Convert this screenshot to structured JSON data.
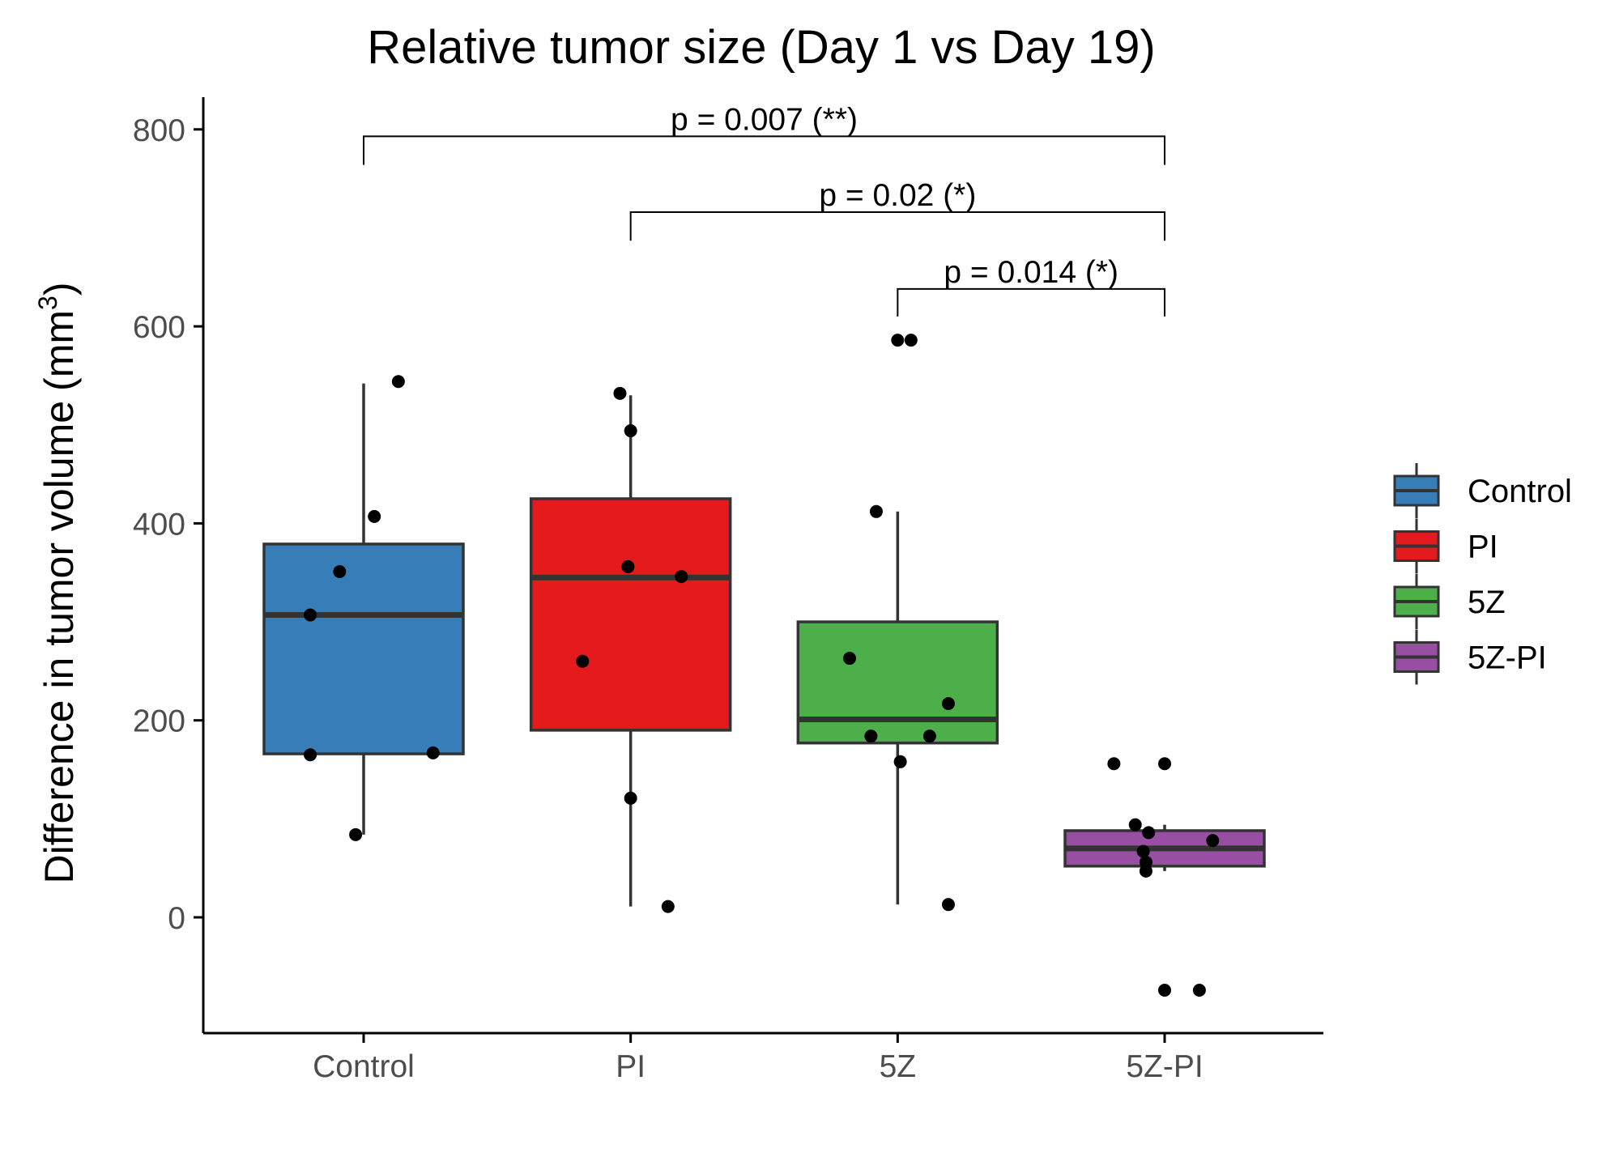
{
  "chart_data": {
    "type": "box",
    "title": "Relative tumor size (Day 1 vs Day 19)",
    "xlabel": "",
    "ylabel": "Difference in tumor volume",
    "ylabel_unit": "mm",
    "ylabel_unit_sup": "3",
    "ylim": [
      -118,
      835
    ],
    "yticks": [
      0,
      200,
      400,
      600,
      800
    ],
    "ytick_labels": [
      "0",
      "200",
      "400",
      "600",
      "800"
    ],
    "categories": [
      "Control",
      "PI",
      "5Z",
      "5Z-PI"
    ],
    "groups": [
      {
        "name": "Control",
        "color": "#377EB8",
        "box": {
          "whisker_low": 84,
          "q1": 166,
          "median": 307,
          "q3": 379,
          "whisker_high": 542
        },
        "points": [
          [
            -0.03,
            84
          ],
          [
            -0.2,
            165
          ],
          [
            0.26,
            167
          ],
          [
            -0.2,
            307
          ],
          [
            -0.09,
            351
          ],
          [
            0.04,
            407
          ],
          [
            0.13,
            544
          ]
        ]
      },
      {
        "name": "PI",
        "color": "#E41A1C",
        "box": {
          "whisker_low": 11,
          "q1": 190,
          "median": 345,
          "q3": 425,
          "whisker_high": 530
        },
        "points": [
          [
            0.14,
            11
          ],
          [
            0.0,
            121
          ],
          [
            -0.18,
            260
          ],
          [
            0.19,
            346
          ],
          [
            -0.01,
            356
          ],
          [
            0.0,
            494
          ],
          [
            -0.04,
            532
          ]
        ]
      },
      {
        "name": "5Z",
        "color": "#4DAF4A",
        "box": {
          "whisker_low": 13,
          "q1": 177,
          "median": 201,
          "q3": 300,
          "whisker_high": 412
        },
        "points": [
          [
            0.19,
            13
          ],
          [
            0.01,
            158
          ],
          [
            -0.1,
            184
          ],
          [
            0.12,
            184
          ],
          [
            0.19,
            217
          ],
          [
            -0.18,
            263
          ],
          [
            -0.08,
            412
          ],
          [
            0.0,
            586
          ],
          [
            0.05,
            586
          ]
        ]
      },
      {
        "name": "5Z-PI",
        "color": "#984EA3",
        "box": {
          "whisker_low": 47,
          "q1": 52,
          "median": 70,
          "q3": 88,
          "whisker_high": 94
        },
        "points": [
          [
            0.0,
            -74
          ],
          [
            0.13,
            -74
          ],
          [
            -0.07,
            47
          ],
          [
            -0.07,
            56
          ],
          [
            -0.08,
            67
          ],
          [
            -0.06,
            86
          ],
          [
            -0.11,
            94
          ],
          [
            0.18,
            78
          ],
          [
            -0.19,
            156
          ],
          [
            0.0,
            156
          ]
        ]
      }
    ],
    "annotations": [
      {
        "from": "Control",
        "to": "5Z-PI",
        "label": "p = 0.007 (**)",
        "y": 793,
        "tip_low": 764
      },
      {
        "from": "PI",
        "to": "5Z-PI",
        "label": "p = 0.02 (*)",
        "y": 716,
        "tip_low": 687
      },
      {
        "from": "5Z",
        "to": "5Z-PI",
        "label": "p = 0.014 (*)",
        "y": 638,
        "tip_low": 610
      }
    ],
    "legend": {
      "position": "right",
      "entries": [
        {
          "label": "Control",
          "color": "#377EB8"
        },
        {
          "label": "PI",
          "color": "#E41A1C"
        },
        {
          "label": "5Z",
          "color": "#4DAF4A"
        },
        {
          "label": "5Z-PI",
          "color": "#984EA3"
        }
      ]
    },
    "grid": false
  }
}
